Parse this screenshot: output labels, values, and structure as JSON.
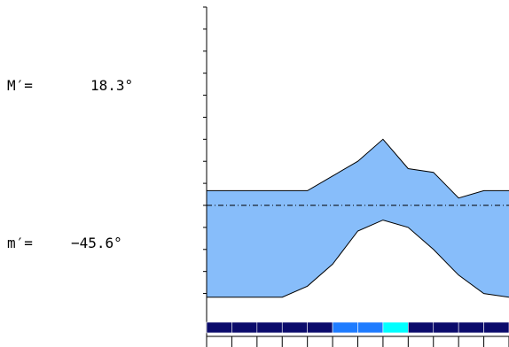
{
  "readouts": {
    "max": {
      "label": "M′=",
      "value": "18.3°"
    },
    "min": {
      "label": "m′=",
      "value": "−45.6°"
    }
  },
  "chart_data": {
    "type": "area",
    "title": "",
    "xlabel": "",
    "ylabel": "",
    "x": [
      0,
      1,
      2,
      3,
      4,
      5,
      6,
      7,
      8,
      9,
      10,
      11,
      12
    ],
    "upper": [
      -32,
      -32,
      -32,
      -32,
      -32,
      -28,
      -24,
      -18,
      -26,
      -27,
      -34,
      -32,
      -32
    ],
    "lower": [
      -61,
      -61,
      -61,
      -61,
      -58,
      -52,
      -43,
      -40,
      -42,
      -48,
      -55,
      -60,
      -61
    ],
    "zero_line": -36,
    "ylim": [
      -63,
      18
    ],
    "y_ticks": [
      18,
      12,
      6,
      0,
      -6,
      -12,
      -18,
      -24,
      -30,
      -36,
      -42,
      -48,
      -54,
      -60
    ],
    "month_colors": [
      "#0b0b6b",
      "#0b0b6b",
      "#0b0b6b",
      "#0b0b6b",
      "#0b0b6b",
      "#1e7cff",
      "#1e7cff",
      "#00ffff",
      "#0b0b6b",
      "#0b0b6b",
      "#0b0b6b",
      "#0b0b6b"
    ],
    "colors": {
      "fill": "#87bdfa",
      "edge": "#000000"
    }
  }
}
